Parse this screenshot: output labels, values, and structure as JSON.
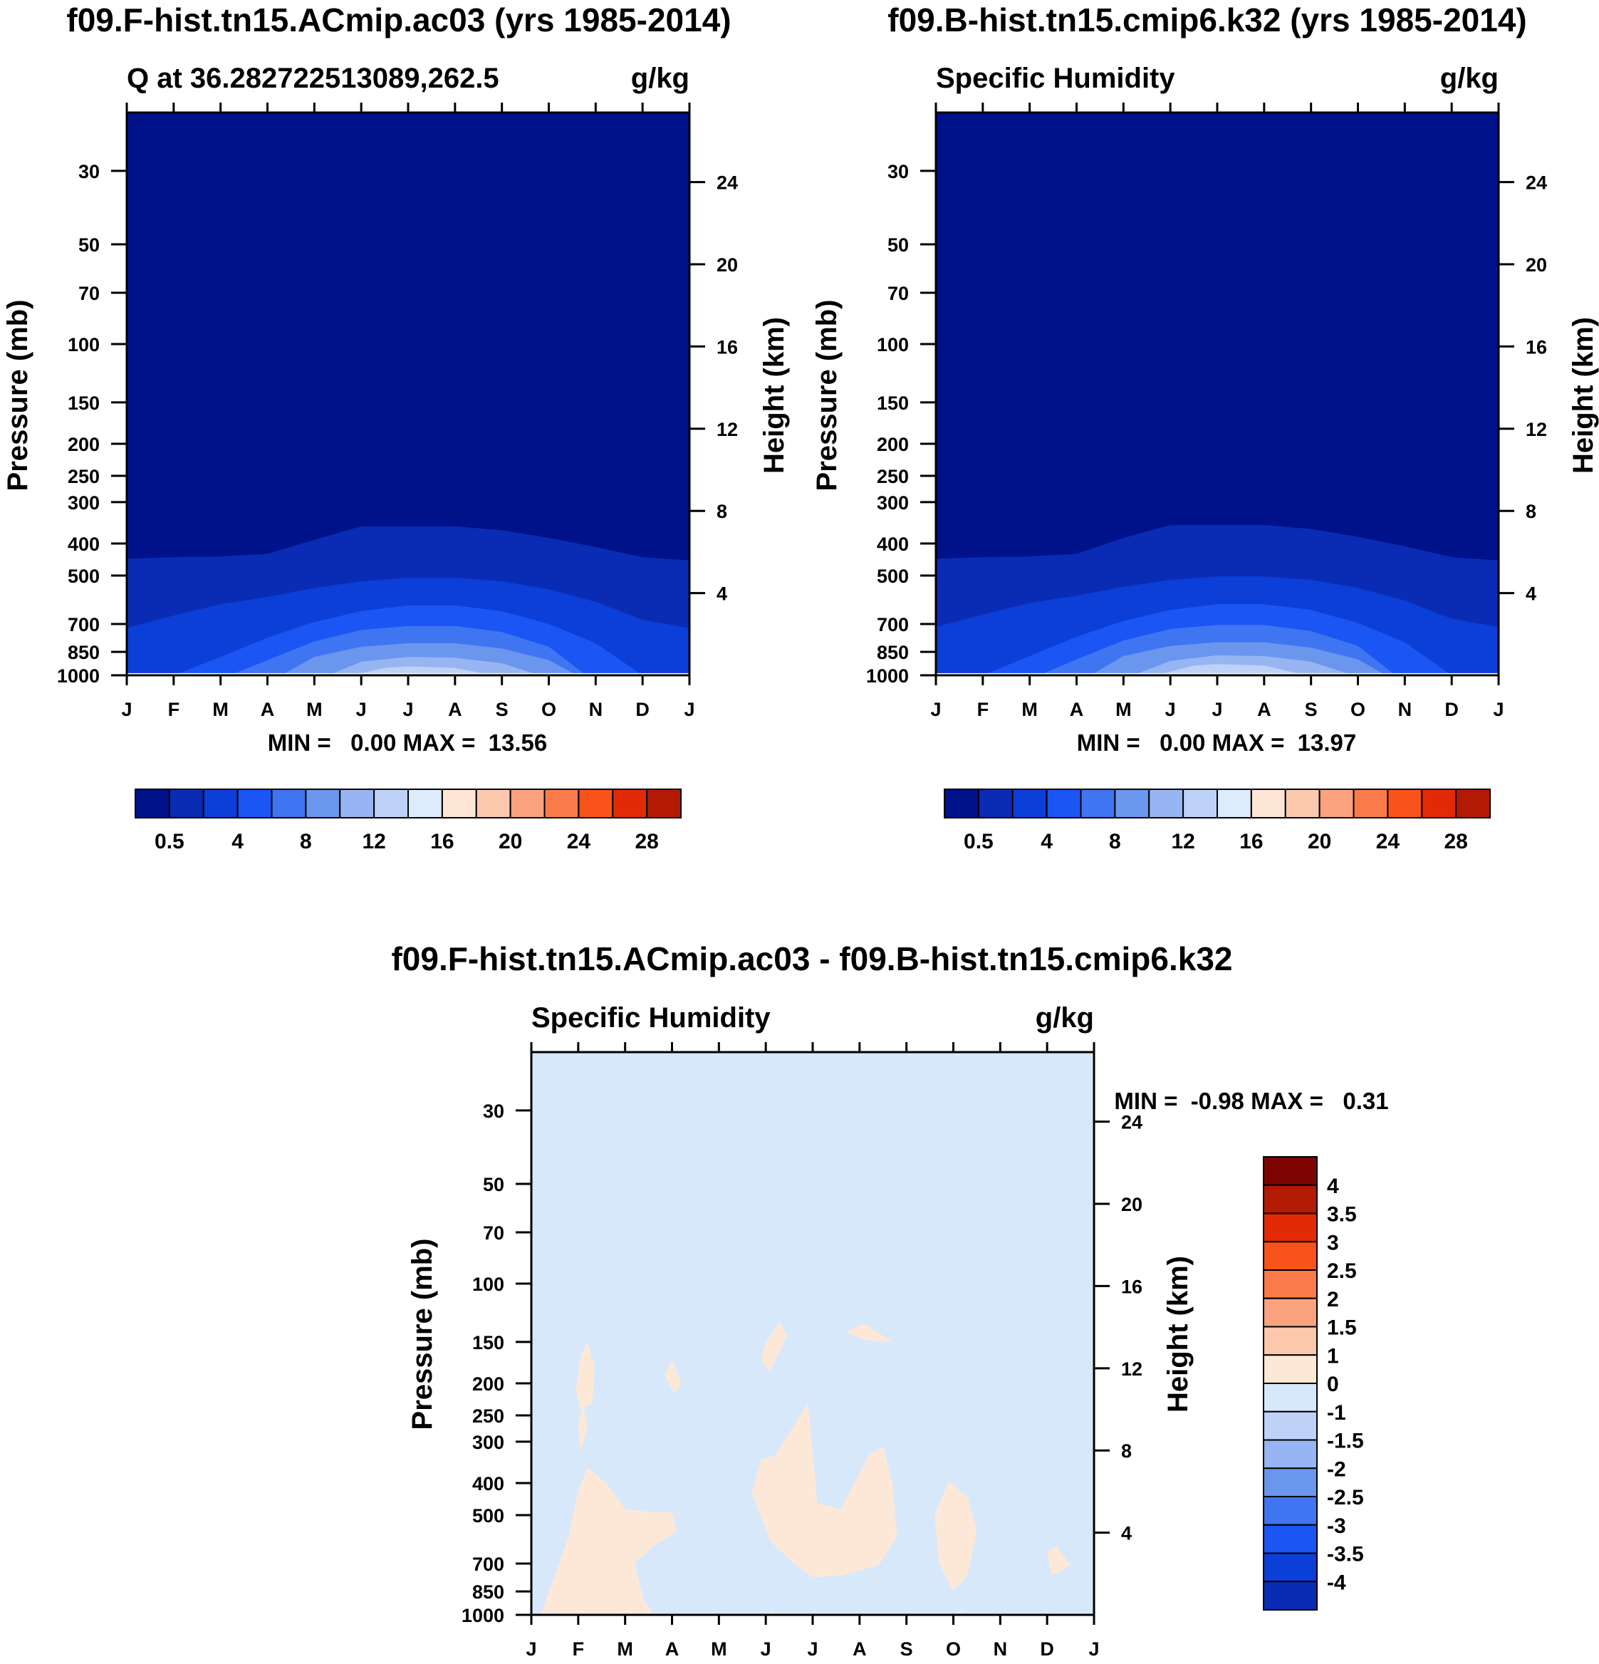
{
  "colors": {
    "abs_levels": [
      "#00128a",
      "#0a2cb4",
      "#0c3ed8",
      "#1b55f3",
      "#3f75f0",
      "#6b96ee",
      "#96b5f2",
      "#bed2f7",
      "#ddebfc",
      "#fee6d6",
      "#fcc9ae",
      "#fba27e",
      "#fb7a4a",
      "#f9531c",
      "#e22b06",
      "#b31a03",
      "#7e0404"
    ],
    "diff_levels": [
      "#00128a",
      "#0a2cb4",
      "#0c3ed8",
      "#1b55f3",
      "#3f75f0",
      "#6b96ee",
      "#96b5f2",
      "#bed2f7",
      "#d8e8fb",
      "#fde8d8",
      "#fbc7ad",
      "#fba27e",
      "#fb7a4a",
      "#f9531c",
      "#e22b06",
      "#b31a03",
      "#7e0404"
    ],
    "frame": "#000000"
  },
  "chart_data": [
    {
      "id": "panel-model-a",
      "type": "heatmap",
      "figure_title": "f09.F-hist.tn15.ACmip.ac03 (yrs 1985-2014)",
      "left_title": "Q at 36.282722513089,262.5",
      "right_title": "g/kg",
      "xlabel": "",
      "ylabel": "Pressure (mb)",
      "y2label": "Height (km)",
      "x_ticks": [
        "J",
        "F",
        "M",
        "A",
        "M",
        "J",
        "J",
        "A",
        "S",
        "O",
        "N",
        "D",
        "J"
      ],
      "y_ticks": [
        30,
        50,
        70,
        100,
        150,
        200,
        250,
        300,
        400,
        500,
        700,
        850,
        1000
      ],
      "y2_ticks": [
        24,
        20,
        16,
        12,
        8,
        4
      ],
      "ylim": [
        1000,
        20
      ],
      "stats": "MIN =   0.00 MAX =  13.56",
      "min": 0.0,
      "max": 13.56,
      "colorbar_labels": [
        "0.5",
        "4",
        "8",
        "12",
        "16",
        "20",
        "24",
        "28"
      ],
      "contours": [
        {
          "level": 0.5,
          "month": [
            0,
            1,
            2,
            3,
            4,
            5,
            6,
            7,
            8,
            9,
            10,
            11,
            12
          ],
          "p": [
            445,
            440,
            438,
            430,
            390,
            355,
            355,
            355,
            365,
            385,
            410,
            440,
            450
          ]
        },
        {
          "level": 2,
          "month": [
            0,
            1,
            2,
            3,
            4,
            5,
            6,
            7,
            8,
            9,
            10,
            11,
            12
          ],
          "p": [
            720,
            660,
            610,
            580,
            545,
            520,
            508,
            508,
            520,
            550,
            600,
            680,
            720
          ]
        },
        {
          "level": 4,
          "month": [
            1,
            2,
            3,
            4,
            5,
            6,
            7,
            8,
            9,
            10,
            11
          ],
          "p": [
            1000,
            880,
            770,
            690,
            640,
            615,
            615,
            640,
            700,
            800,
            1000
          ]
        },
        {
          "level": 6,
          "month": [
            2.2,
            3,
            4,
            5,
            6,
            7,
            8,
            9,
            9.8
          ],
          "p": [
            1000,
            900,
            790,
            730,
            710,
            710,
            740,
            820,
            1000
          ]
        },
        {
          "level": 8,
          "month": [
            3.3,
            4,
            5,
            6,
            7,
            8,
            9,
            9.6
          ],
          "p": [
            1000,
            880,
            820,
            800,
            800,
            830,
            900,
            1000
          ]
        },
        {
          "level": 10,
          "month": [
            4.3,
            5,
            6,
            7,
            8,
            8.8
          ],
          "p": [
            1000,
            910,
            880,
            885,
            920,
            1000
          ]
        },
        {
          "level": 12,
          "month": [
            4.8,
            5.5,
            6,
            7,
            7.8
          ],
          "p": [
            1000,
            950,
            940,
            950,
            1000
          ]
        }
      ]
    },
    {
      "id": "panel-model-b",
      "type": "heatmap",
      "figure_title": "f09.B-hist.tn15.cmip6.k32 (yrs 1985-2014)",
      "left_title": "Specific Humidity",
      "right_title": "g/kg",
      "xlabel": "",
      "ylabel": "Pressure (mb)",
      "y2label": "Height (km)",
      "x_ticks": [
        "J",
        "F",
        "M",
        "A",
        "M",
        "J",
        "J",
        "A",
        "S",
        "O",
        "N",
        "D",
        "J"
      ],
      "y_ticks": [
        30,
        50,
        70,
        100,
        150,
        200,
        250,
        300,
        400,
        500,
        700,
        850,
        1000
      ],
      "y2_ticks": [
        24,
        20,
        16,
        12,
        8,
        4
      ],
      "ylim": [
        1000,
        20
      ],
      "stats": "MIN =   0.00 MAX =  13.97",
      "min": 0.0,
      "max": 13.97,
      "colorbar_labels": [
        "0.5",
        "4",
        "8",
        "12",
        "16",
        "20",
        "24",
        "28"
      ],
      "contours": [
        {
          "level": 0.5,
          "month": [
            0,
            1,
            2,
            3,
            4,
            5,
            6,
            7,
            8,
            9,
            10,
            11,
            12
          ],
          "p": [
            445,
            440,
            438,
            430,
            385,
            352,
            352,
            352,
            362,
            382,
            408,
            440,
            450
          ]
        },
        {
          "level": 2,
          "month": [
            0,
            1,
            2,
            3,
            4,
            5,
            6,
            7,
            8,
            9,
            10,
            11,
            12
          ],
          "p": [
            715,
            655,
            605,
            575,
            540,
            515,
            503,
            503,
            515,
            545,
            595,
            675,
            715
          ]
        },
        {
          "level": 4,
          "month": [
            1,
            2,
            3,
            4,
            5,
            6,
            7,
            8,
            9,
            10,
            11
          ],
          "p": [
            1000,
            875,
            765,
            685,
            635,
            610,
            610,
            635,
            695,
            795,
            1000
          ]
        },
        {
          "level": 6,
          "month": [
            2.2,
            3,
            4,
            5,
            6,
            7,
            8,
            9,
            9.8
          ],
          "p": [
            1000,
            895,
            785,
            725,
            705,
            705,
            735,
            815,
            1000
          ]
        },
        {
          "level": 8,
          "month": [
            3.3,
            4,
            5,
            6,
            7,
            8,
            9,
            9.6
          ],
          "p": [
            1000,
            875,
            815,
            795,
            795,
            825,
            895,
            1000
          ]
        },
        {
          "level": 10,
          "month": [
            4.2,
            5,
            6,
            7,
            8,
            8.9
          ],
          "p": [
            1000,
            905,
            870,
            875,
            910,
            1000
          ]
        },
        {
          "level": 12,
          "month": [
            4.7,
            5.5,
            6,
            7,
            7.9
          ],
          "p": [
            1000,
            935,
            925,
            935,
            1000
          ]
        }
      ]
    },
    {
      "id": "panel-difference",
      "type": "heatmap",
      "figure_title": "f09.F-hist.tn15.ACmip.ac03 - f09.B-hist.tn15.cmip6.k32",
      "left_title": "Specific Humidity",
      "right_title": "g/kg",
      "xlabel": "",
      "ylabel": "Pressure (mb)",
      "y2label": "Height (km)",
      "x_ticks": [
        "J",
        "F",
        "M",
        "A",
        "M",
        "J",
        "J",
        "A",
        "S",
        "O",
        "N",
        "D",
        "J"
      ],
      "y_ticks": [
        30,
        50,
        70,
        100,
        150,
        200,
        250,
        300,
        400,
        500,
        700,
        850,
        1000
      ],
      "y2_ticks": [
        24,
        20,
        16,
        12,
        8,
        4
      ],
      "ylim": [
        1000,
        20
      ],
      "stats": "MIN =  -0.98 MAX =   0.31",
      "min": -0.98,
      "max": 0.31,
      "colorbar_labels": [
        "4",
        "3.5",
        "3",
        "2.5",
        "2",
        "1.5",
        "1",
        "0",
        "-1",
        "-1.5",
        "-2",
        "-2.5",
        "-3",
        "-3.5",
        "-4"
      ],
      "positive_regions": [
        {
          "month": [
            0.2,
            0.5,
            0.8,
            1.0,
            1.2,
            1.6,
            2.0,
            2.6,
            3.0,
            3.1,
            2.6,
            2.2,
            2.4,
            2.6,
            2.0,
            1.4,
            0.6,
            0.2,
            0.3
          ],
          "p": [
            1000,
            760,
            580,
            420,
            360,
            400,
            480,
            490,
            490,
            560,
            620,
            700,
            900,
            1000,
            1000,
            1000,
            1000,
            1000,
            1000
          ]
        },
        {
          "month": [
            0.95,
            1.05,
            1.2,
            1.35,
            1.3,
            1.05,
            0.95
          ],
          "p": [
            210,
            165,
            150,
            180,
            230,
            240,
            210
          ]
        },
        {
          "month": [
            1.0,
            1.1,
            1.2,
            1.05,
            1.0
          ],
          "p": [
            270,
            228,
            270,
            320,
            270
          ]
        },
        {
          "month": [
            2.85,
            3.0,
            3.2,
            3.05,
            2.85
          ],
          "p": [
            190,
            170,
            200,
            215,
            190
          ]
        },
        {
          "month": [
            4.7,
            4.9,
            5.2,
            5.9,
            6.1,
            6.6,
            7.2,
            7.5,
            7.7,
            7.8,
            7.4,
            6.6,
            6.0,
            5.6,
            5.1,
            4.7
          ],
          "p": [
            430,
            340,
            330,
            230,
            460,
            480,
            330,
            310,
            400,
            580,
            710,
            760,
            770,
            700,
            600,
            430
          ]
        },
        {
          "month": [
            5.0,
            5.3,
            5.45,
            5.2,
            5.1,
            4.9,
            5.0
          ],
          "p": [
            150,
            130,
            145,
            170,
            185,
            170,
            150
          ]
        },
        {
          "month": [
            6.7,
            7.1,
            7.7,
            7.1,
            6.7
          ],
          "p": [
            140,
            132,
            150,
            148,
            140
          ]
        },
        {
          "month": [
            8.6,
            8.9,
            9.3,
            9.5,
            9.3,
            9.0,
            8.7,
            8.6
          ],
          "p": [
            500,
            395,
            440,
            560,
            760,
            850,
            700,
            500
          ]
        },
        {
          "month": [
            11.0,
            11.2,
            11.5,
            11.1,
            11.0
          ],
          "p": [
            650,
            620,
            710,
            760,
            650
          ]
        },
        {
          "month": [
            5.0,
            5.2,
            5.1,
            5.0
          ],
          "p": [
            1000,
            960,
            1000,
            1000
          ]
        },
        {
          "month": [
            9.0,
            9.25,
            9.1,
            9.0
          ],
          "p": [
            1000,
            950,
            1000,
            1000
          ]
        }
      ]
    }
  ]
}
